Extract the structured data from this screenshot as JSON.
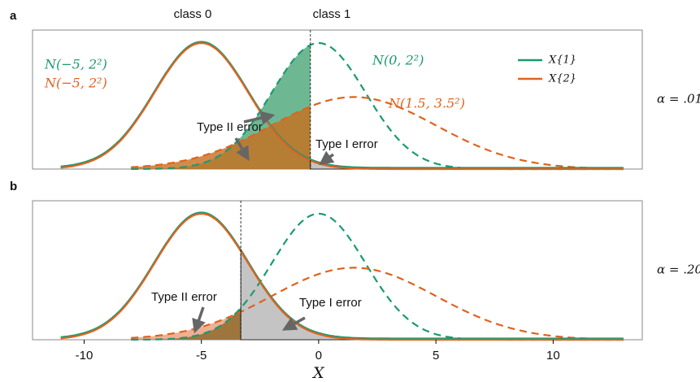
{
  "chart_data": [
    {
      "type": "density",
      "panel": "a",
      "alpha_label": "α = .01",
      "threshold": -0.35,
      "xlim": [
        -12.2,
        13.8
      ],
      "ylim": [
        0,
        0.22
      ],
      "class_labels": [
        "class 0",
        "class 1"
      ],
      "legend": "top-right",
      "series": [
        {
          "name": "X{1}",
          "color": "#1a9a72",
          "class0": {
            "mean": -5,
            "sd": 2,
            "label": "N(−5, 2²)"
          },
          "class1": {
            "mean": 0,
            "sd": 2,
            "label": "N(0, 2²)"
          }
        },
        {
          "name": "X{2}",
          "color": "#e0621e",
          "class0": {
            "mean": -5,
            "sd": 2,
            "label": "N(−5, 2²)"
          },
          "class1": {
            "mean": 1.5,
            "sd": 3.5,
            "label": "N(1.5, 3.5²)"
          }
        }
      ],
      "annotations": [
        "Type II error",
        "Type I error"
      ]
    },
    {
      "type": "density",
      "panel": "b",
      "alpha_label": "α = .20",
      "threshold": -3.32,
      "xlim": [
        -12.2,
        13.8
      ],
      "ylim": [
        0,
        0.22
      ],
      "xticks": [
        -10,
        -5,
        0,
        5,
        10
      ],
      "xlabel": "X",
      "series": [
        {
          "color": "#1a9a72",
          "class0": {
            "mean": -5,
            "sd": 2
          },
          "class1": {
            "mean": 0,
            "sd": 2
          }
        },
        {
          "color": "#e0621e",
          "class0": {
            "mean": -5,
            "sd": 2
          },
          "class1": {
            "mean": 1.5,
            "sd": 3.5
          }
        }
      ],
      "annotations": [
        "Type II error",
        "Type I error"
      ]
    }
  ]
}
